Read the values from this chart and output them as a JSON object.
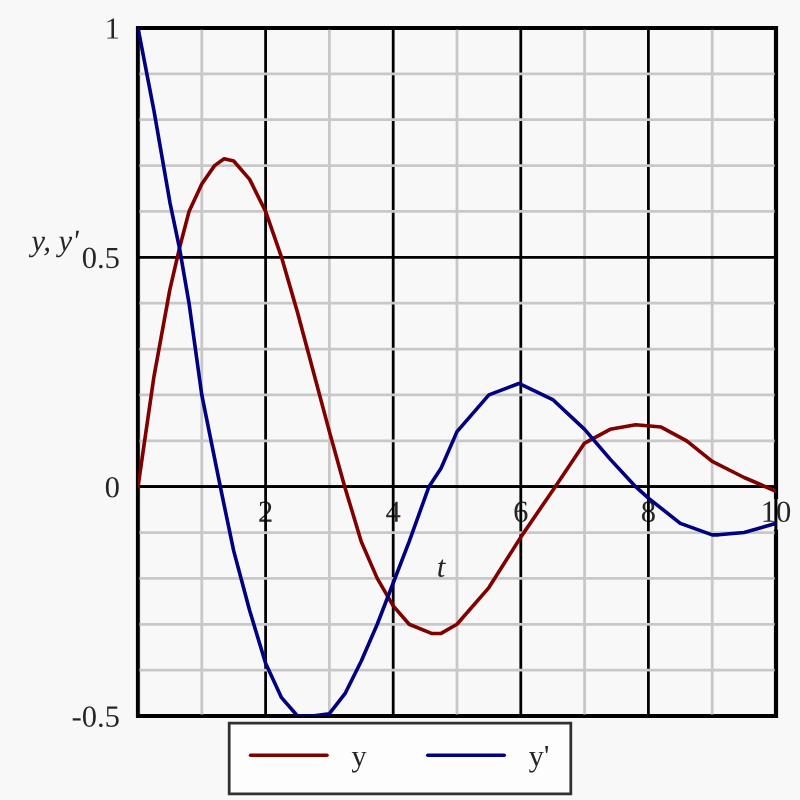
{
  "chart_data": {
    "type": "line",
    "xlabel": "t",
    "ylabel": "y, y'",
    "xlim": [
      0,
      10
    ],
    "ylim": [
      -0.5,
      1
    ],
    "xticks": [
      {
        "value": 0,
        "label": null
      },
      {
        "value": 1,
        "label": null
      },
      2,
      {
        "value": 3,
        "label": null
      },
      4,
      {
        "value": 5,
        "label": null
      },
      6,
      {
        "value": 7,
        "label": null
      },
      8,
      {
        "value": 9,
        "label": null
      },
      10
    ],
    "yticks": [
      -0.5,
      {
        "value": -0.4,
        "label": null
      },
      {
        "value": -0.3,
        "label": null
      },
      {
        "value": -0.2,
        "label": null
      },
      {
        "value": -0.1,
        "label": null
      },
      0,
      {
        "value": 0.1,
        "label": null
      },
      {
        "value": 0.2,
        "label": null
      },
      {
        "value": 0.3,
        "label": null
      },
      {
        "value": 0.4,
        "label": null
      },
      0.5,
      {
        "value": 0.6,
        "label": null
      },
      {
        "value": 0.7,
        "label": null
      },
      {
        "value": 0.8,
        "label": null
      },
      {
        "value": 0.9,
        "label": null
      },
      1
    ],
    "grid": true,
    "legend": "bottom",
    "marker": "none",
    "line_style": "solid",
    "series": [
      {
        "name": "y",
        "color": "#800000",
        "x": [
          0,
          0.25,
          0.5,
          0.65,
          0.8,
          1,
          1.2,
          1.35,
          1.5,
          1.75,
          2,
          2.25,
          2.5,
          2.75,
          3,
          3.24,
          3.5,
          3.75,
          4,
          4.25,
          4.6,
          4.75,
          5,
          5.5,
          6,
          6.54,
          7,
          7.4,
          7.8,
          8.2,
          8.6,
          9,
          9.5,
          10
        ],
        "values": [
          0,
          0.24,
          0.43,
          0.52,
          0.6,
          0.66,
          0.7,
          0.715,
          0.71,
          0.67,
          0.6,
          0.5,
          0.38,
          0.25,
          0.12,
          0,
          -0.12,
          -0.2,
          -0.26,
          -0.3,
          -0.32,
          -0.32,
          -0.3,
          -0.22,
          -0.11,
          0,
          0.095,
          0.125,
          0.135,
          0.13,
          0.1,
          0.055,
          0.02,
          -0.01
        ]
      },
      {
        "name": "y'",
        "color": "#000080",
        "x": [
          0,
          0.25,
          0.5,
          0.65,
          0.8,
          1,
          1.29,
          1.5,
          1.75,
          2,
          2.25,
          2.5,
          2.73,
          3,
          3.25,
          3.5,
          3.75,
          4,
          4.25,
          4.56,
          4.75,
          5,
          5.5,
          5.97,
          6.5,
          7,
          7.4,
          7.8,
          8,
          8.5,
          9,
          9.1,
          9.5,
          10
        ],
        "values": [
          1,
          0.82,
          0.62,
          0.52,
          0.4,
          0.2,
          0,
          -0.14,
          -0.27,
          -0.385,
          -0.46,
          -0.5,
          -0.5,
          -0.495,
          -0.45,
          -0.38,
          -0.3,
          -0.21,
          -0.12,
          0,
          0.04,
          0.12,
          0.2,
          0.225,
          0.19,
          0.125,
          0.06,
          0,
          -0.025,
          -0.08,
          -0.105,
          -0.105,
          -0.1,
          -0.08
        ]
      }
    ]
  }
}
